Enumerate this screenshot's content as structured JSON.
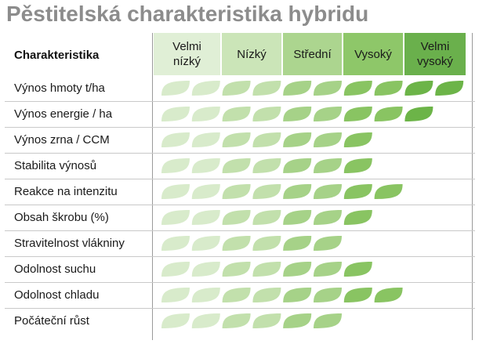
{
  "title": "Pěstitelská charakteristika hybridu",
  "header": {
    "label": "Charakteristika",
    "levels": [
      "Velmi\nnízký",
      "Nízký",
      "Střední",
      "Vysoký",
      "Velmi\nvysoký"
    ]
  },
  "colors": {
    "level_bg": [
      "#e0efd6",
      "#cbe5b8",
      "#acd58f",
      "#8ec769",
      "#6ab04c"
    ],
    "leaf": [
      "#d8ebcb",
      "#c2e0ac",
      "#a6d288",
      "#89c462",
      "#6cb448"
    ]
  },
  "max_score": 10,
  "rows": [
    {
      "label": "Výnos hmoty t/ha",
      "score": 10
    },
    {
      "label": "Výnos energie / ha",
      "score": 9
    },
    {
      "label": "Výnos zrna / CCM",
      "score": 7
    },
    {
      "label": "Stabilita výnosů",
      "score": 7
    },
    {
      "label": "Reakce na intenzitu",
      "score": 8
    },
    {
      "label": "Obsah škrobu (%)",
      "score": 7
    },
    {
      "label": "Stravitelnost vlákniny",
      "score": 6
    },
    {
      "label": "Odolnost suchu",
      "score": 7
    },
    {
      "label": "Odolnost chladu",
      "score": 8
    },
    {
      "label": "Počáteční růst",
      "score": 6
    }
  ]
}
